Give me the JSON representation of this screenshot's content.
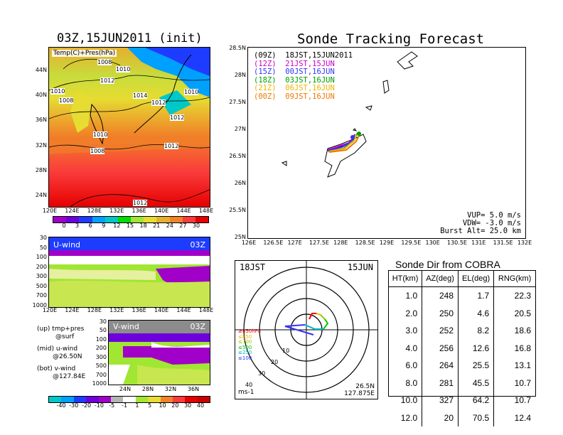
{
  "left_top": {
    "title": "03Z,15JUN2011 (init)",
    "label": "Temp(C)+Pres(hPa)",
    "lat_ticks": [
      "44N",
      "40N",
      "36N",
      "32N",
      "28N",
      "24N"
    ],
    "lon_ticks": [
      "120E",
      "124E",
      "128E",
      "132E",
      "136E",
      "140E",
      "144E",
      "148E"
    ],
    "isobar_labels": [
      "1008",
      "1010",
      "1012",
      "1014",
      "1010",
      "1012",
      "1010",
      "1008",
      "1012",
      "1010",
      "1008",
      "1012",
      "1012",
      "1010"
    ],
    "colorbar_ticks": [
      "0",
      "3",
      "6",
      "9",
      "12",
      "15",
      "18",
      "21",
      "24",
      "27",
      "30"
    ],
    "colorbar_colors": [
      "#a000c8",
      "#6e00dc",
      "#1e3cff",
      "#00a0ff",
      "#00c8c8",
      "#00dc00",
      "#a0e632",
      "#e6dc32",
      "#e6af2d",
      "#f08228",
      "#fa3c3c",
      "#e60000"
    ]
  },
  "left_mid": {
    "label": "U-wind",
    "time": "03Z",
    "p_ticks": [
      "30",
      "50",
      "100",
      "200",
      "300",
      "500",
      "700",
      "1000"
    ],
    "lon_ticks": [
      "120E",
      "124E",
      "128E",
      "132E",
      "136E",
      "140E",
      "144E",
      "148E"
    ]
  },
  "left_bot": {
    "label": "V-wind",
    "time": "03Z",
    "p_ticks": [
      "30",
      "50",
      "100",
      "200",
      "300",
      "500",
      "700",
      "1000"
    ],
    "lat_ticks": [
      "24N",
      "28N",
      "32N",
      "36N"
    ],
    "legend": [
      "(up) tmp+pres",
      "@surf",
      "(mid) u-wind",
      "@26.50N",
      "(bot) v-wind",
      "@127.84E"
    ],
    "colorbar_ticks": [
      "-40",
      "-30",
      "-20",
      "-10",
      "-5",
      "-1",
      "1",
      "5",
      "10",
      "20",
      "30",
      "40"
    ],
    "colorbar_colors": [
      "#00c8c8",
      "#00a0ff",
      "#1e3cff",
      "#6e00dc",
      "#a000c8",
      "#b4b4b4",
      "#ffffff",
      "#a0e632",
      "#e6dc32",
      "#f08228",
      "#fa3c3c",
      "#e60000",
      "#c80000"
    ]
  },
  "track": {
    "title": "Sonde Tracking Forecast",
    "lat_ticks": [
      "28.5N",
      "28N",
      "27.5N",
      "27N",
      "26.5N",
      "26N",
      "25.5N",
      "25N"
    ],
    "lon_ticks": [
      "126E",
      "126.5E",
      "127E",
      "127.5E",
      "128E",
      "128.5E",
      "129E",
      "129.5E",
      "130E",
      "130.5E",
      "131E",
      "131.5E",
      "132E"
    ],
    "legend": [
      {
        "code": "(09Z)",
        "time": "18JST,15JUN2011",
        "color": "#000000"
      },
      {
        "code": "(12Z)",
        "time": "21JST,15JUN",
        "color": "#c800c8"
      },
      {
        "code": "(15Z)",
        "time": "00JST,16JUN",
        "color": "#3232ff"
      },
      {
        "code": "(18Z)",
        "time": "03JST,16JUN",
        "color": "#00a000"
      },
      {
        "code": "(21Z)",
        "time": "06JST,16JUN",
        "color": "#f0b400"
      },
      {
        "code": "(00Z)",
        "time": "09JST,16JUN",
        "color": "#f07800"
      }
    ],
    "params": [
      "VUP=  5.0 m/s",
      "VDW= -3.0 m/s",
      "Burst Alt= 25.0 km"
    ]
  },
  "polar": {
    "time_label": "18JST",
    "date_label": "15JUN",
    "ring_labels": [
      "10",
      "20",
      "30",
      "40"
    ],
    "unit": "ms-1",
    "loc_lat": "26.5N",
    "loc_lon": "127.875E",
    "levels": [
      {
        "label": "≥850hPa",
        "color": "#fa0000"
      },
      {
        "label": "≤850",
        "color": "#f0b400"
      },
      {
        "label": "≤700",
        "color": "#a0c800"
      },
      {
        "label": "≤500",
        "color": "#00c800"
      },
      {
        "label": "≤250",
        "color": "#00b4c8"
      },
      {
        "label": "≤100",
        "color": "#3232ff"
      }
    ]
  },
  "table": {
    "title": "Sonde Dir from COBRA",
    "headers": [
      "HT(km)",
      "AZ(deg)",
      "EL(deg)",
      "RNG(km)"
    ],
    "rows": [
      [
        "1.0",
        "248",
        "1.7",
        "22.3"
      ],
      [
        "2.0",
        "250",
        "4.6",
        "20.5"
      ],
      [
        "3.0",
        "252",
        "8.2",
        "18.6"
      ],
      [
        "4.0",
        "256",
        "12.6",
        "16.8"
      ],
      [
        "6.0",
        "264",
        "25.5",
        "13.1"
      ],
      [
        "8.0",
        "281",
        "45.5",
        "10.7"
      ],
      [
        "10.0",
        "327",
        "64.2",
        "10.7"
      ],
      [
        "12.0",
        "20",
        "70.5",
        "12.4"
      ]
    ]
  }
}
